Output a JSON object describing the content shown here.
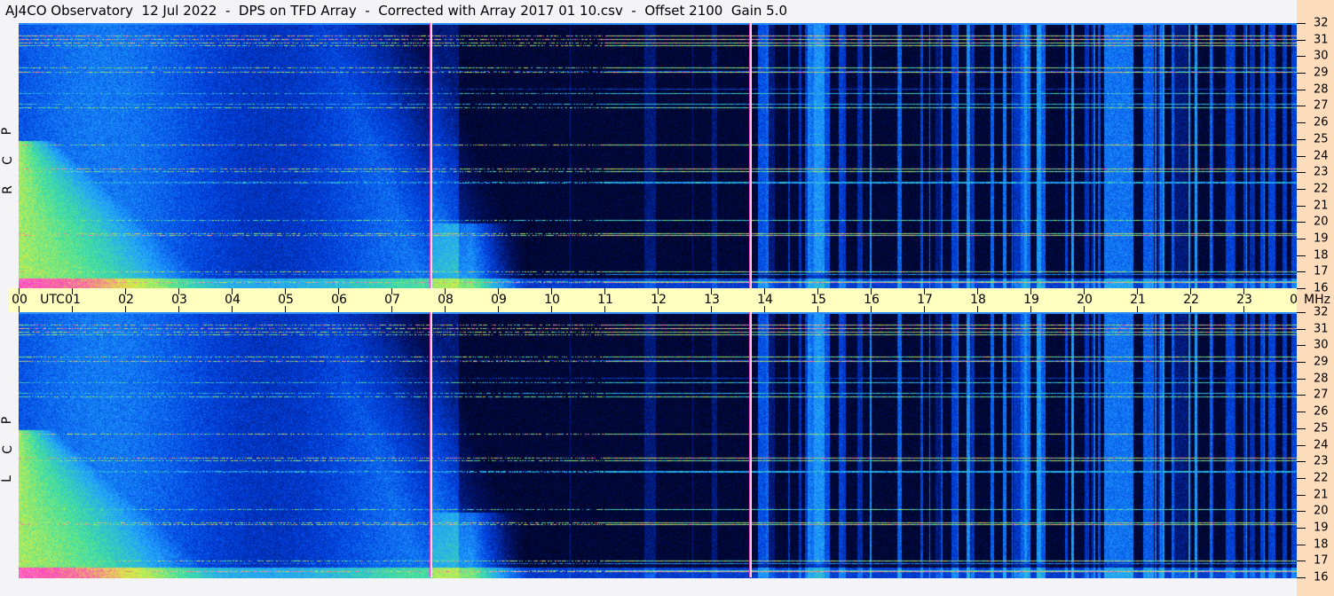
{
  "window": {
    "title": "AJ4CO Observatory  12 Jul 2022  -  DPS on TFD Array  -  Corrected with Array 2017 01 10.csv  -  Offset 2100  Gain 5.0"
  },
  "chart_data": {
    "type": "heatmap",
    "title": "AJ4CO Observatory  12 Jul 2022  -  DPS on TFD Array  -  Corrected with Array 2017 01 10.csv  -  Offset 2100  Gain 5.0",
    "xlabel": "UTC",
    "ylabel": "MHz",
    "x_ticks": [
      "00",
      "01",
      "02",
      "03",
      "04",
      "05",
      "06",
      "07",
      "08",
      "09",
      "10",
      "11",
      "12",
      "13",
      "14",
      "15",
      "16",
      "17",
      "18",
      "19",
      "20",
      "21",
      "22",
      "23",
      "00"
    ],
    "xlim_hours": [
      0,
      24
    ],
    "y_ticks": [
      32,
      31,
      30,
      29,
      28,
      27,
      26,
      25,
      24,
      23,
      22,
      21,
      20,
      19,
      18,
      17,
      16
    ],
    "ylim_mhz": [
      16,
      32
    ],
    "panels": [
      {
        "name": "RCP",
        "letters": [
          "R",
          "C",
          "P"
        ]
      },
      {
        "name": "LCP",
        "letters": [
          "L",
          "C",
          "P"
        ]
      }
    ],
    "vertical_markers_utc_hours": [
      7.72,
      13.72
    ],
    "colormap": [
      "#000010",
      "#001060",
      "#0040e0",
      "#20a0ff",
      "#40e0a0",
      "#e0f040",
      "#ff40c0",
      "#ffffff"
    ],
    "axis_colors": {
      "time_band": "#ffffc0",
      "freq_band": "#fddcbc"
    }
  }
}
